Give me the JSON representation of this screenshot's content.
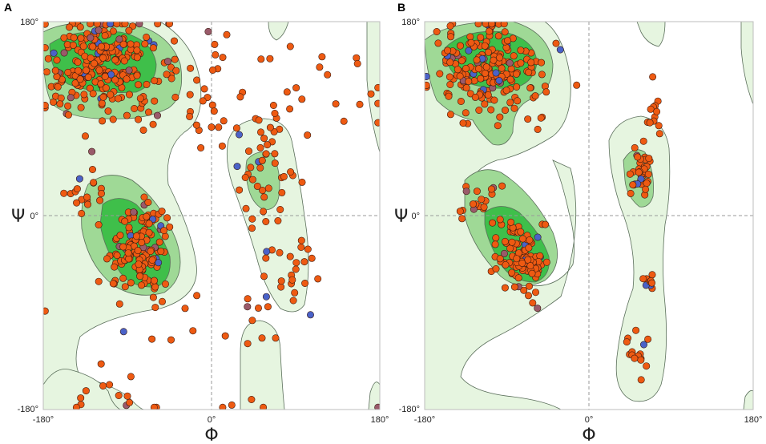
{
  "colors": {
    "allowed": "#e6f5e0",
    "favoured": "#9fd996",
    "core": "#3fbf4a",
    "contour": "#5a6e5a",
    "residue": "#ee5a12",
    "glycine": "#4a62c8",
    "other": "#9a5a6a"
  },
  "chart_data": [
    {
      "panel": "A",
      "type": "scatter",
      "xlabel": "Φ",
      "ylabel": "Ψ",
      "xlim": [
        -180,
        180
      ],
      "ylim": [
        -180,
        180
      ],
      "xticks": [
        "-180°",
        "0°",
        "180°"
      ],
      "yticks": [
        "180°",
        "0°",
        "-180°"
      ],
      "clusters": [
        {
          "cx": -115,
          "cy": 140,
          "sx": 30,
          "sy": 22,
          "n": 240
        },
        {
          "cx": -75,
          "cy": -30,
          "sx": 18,
          "sy": 22,
          "n": 130
        },
        {
          "cx": -130,
          "cy": 20,
          "sx": 12,
          "sy": 10,
          "n": 18
        },
        {
          "cx": 55,
          "cy": 45,
          "sx": 14,
          "sy": 22,
          "n": 30
        },
        {
          "cx": 75,
          "cy": -55,
          "sx": 25,
          "sy": 30,
          "n": 30
        },
        {
          "cx": 70,
          "cy": 100,
          "sx": 70,
          "sy": 35,
          "n": 50
        },
        {
          "cx": -20,
          "cy": 110,
          "sx": 30,
          "sy": 30,
          "n": 25
        },
        {
          "cx": -60,
          "cy": -120,
          "sx": 70,
          "sy": 50,
          "n": 25
        },
        {
          "cx": -120,
          "cy": -170,
          "sx": 20,
          "sy": 10,
          "n": 10
        }
      ]
    },
    {
      "panel": "B",
      "type": "scatter",
      "xlabel": "Φ",
      "ylabel": "Ψ",
      "xlim": [
        -180,
        180
      ],
      "ylim": [
        -180,
        180
      ],
      "xticks": [
        "-180°",
        "0°",
        "180°"
      ],
      "yticks": [
        "180°",
        "0°",
        "-180°"
      ],
      "clusters": [
        {
          "cx": -110,
          "cy": 135,
          "sx": 30,
          "sy": 22,
          "n": 200
        },
        {
          "cx": -75,
          "cy": -40,
          "sx": 14,
          "sy": 18,
          "n": 100
        },
        {
          "cx": -120,
          "cy": 10,
          "sx": 10,
          "sy": 12,
          "n": 20
        },
        {
          "cx": 57,
          "cy": 45,
          "sx": 6,
          "sy": 14,
          "n": 35
        },
        {
          "cx": 65,
          "cy": -60,
          "sx": 5,
          "sy": 5,
          "n": 10
        },
        {
          "cx": 55,
          "cy": -125,
          "sx": 8,
          "sy": 12,
          "n": 15
        },
        {
          "cx": 70,
          "cy": 100,
          "sx": 5,
          "sy": 18,
          "n": 12
        }
      ]
    }
  ]
}
